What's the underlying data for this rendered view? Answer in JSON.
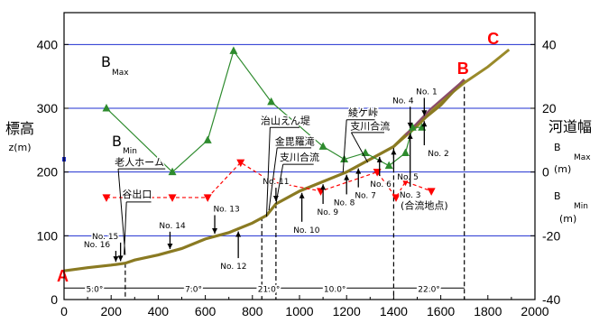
{
  "chart_data": {
    "type": "line",
    "x_ticks": [
      "0",
      "200",
      "400",
      "600",
      "800",
      "1000",
      "1200",
      "1400",
      "1600",
      "1800",
      "2000"
    ],
    "y_left_ticks": [
      "0",
      "100",
      "200",
      "300",
      "400"
    ],
    "y_right_ticks": [
      "-40",
      "-20",
      "0",
      "20",
      "40"
    ],
    "xlim": [
      0,
      2000
    ],
    "ylim_left": [
      0,
      450
    ],
    "ylim_right": [
      -40,
      50
    ],
    "left_axis_label": [
      "標高",
      "z(m)"
    ],
    "right_axis_label": {
      "title": "河道幅",
      "bmax": "B",
      "bmax_sub": "Max",
      "bmax_unit": "(m)",
      "bmin": "B",
      "bmin_sub": "Min",
      "bmin_unit": "(m)"
    },
    "series": [
      {
        "label": "B",
        "label_sub": "Max",
        "color": "#2e8b2e",
        "points": [
          [
            180,
            20
          ],
          [
            460,
            0
          ],
          [
            610,
            10
          ],
          [
            720,
            38
          ],
          [
            880,
            22
          ],
          [
            1100,
            8
          ],
          [
            1190,
            4
          ],
          [
            1280,
            6
          ],
          [
            1380,
            2
          ],
          [
            1450,
            6
          ],
          [
            1480,
            14
          ],
          [
            1520,
            14
          ]
        ]
      },
      {
        "label": "B",
        "label_sub": "Min",
        "color": "#ff0000",
        "points": [
          [
            180,
            -8
          ],
          [
            460,
            -8
          ],
          [
            610,
            -8
          ],
          [
            750,
            3
          ],
          [
            880,
            -3
          ],
          [
            1090,
            -6
          ],
          [
            1330,
            0
          ],
          [
            1410,
            -8
          ],
          [
            1450,
            -3
          ],
          [
            1560,
            -6
          ]
        ]
      }
    ],
    "profile_AB": [
      [
        0,
        45
      ],
      [
        100,
        50
      ],
      [
        200,
        54
      ],
      [
        260,
        57
      ],
      [
        300,
        62
      ],
      [
        400,
        70
      ],
      [
        500,
        80
      ],
      [
        600,
        95
      ],
      [
        700,
        105
      ],
      [
        800,
        120
      ],
      [
        860,
        132
      ],
      [
        900,
        150
      ],
      [
        1000,
        170
      ],
      [
        1100,
        185
      ],
      [
        1200,
        200
      ],
      [
        1300,
        220
      ],
      [
        1400,
        240
      ],
      [
        1450,
        258
      ],
      [
        1500,
        275
      ],
      [
        1600,
        305
      ],
      [
        1700,
        345
      ]
    ],
    "profile_C": [
      [
        1400,
        240
      ],
      [
        1500,
        272
      ],
      [
        1600,
        310
      ],
      [
        1700,
        340
      ],
      [
        1800,
        365
      ],
      [
        1890,
        392
      ]
    ],
    "section_slopes": [
      {
        "label": "5.0°",
        "x_from": 0,
        "x_to": 260
      },
      {
        "label": "7.0°",
        "x_from": 260,
        "x_to": 840
      },
      {
        "label": "21.0°",
        "x_from": 840,
        "x_to": 900
      },
      {
        "label": "10.0°",
        "x_from": 900,
        "x_to": 1400
      },
      {
        "label": "22.0°",
        "x_from": 1400,
        "x_to": 1700
      }
    ],
    "points": [
      {
        "label": "A",
        "x": 0,
        "z": 45
      },
      {
        "label": "B",
        "x": 1700,
        "z": 345
      },
      {
        "label": "C",
        "x": 1890,
        "z": 392
      }
    ],
    "stations": [
      {
        "label": "No. 16",
        "x": 220,
        "label_x": 140,
        "label_z": 82
      },
      {
        "label": "No. 15",
        "x": 240,
        "label_x": 175,
        "label_z": 95
      },
      {
        "label": "No. 14",
        "x": 450,
        "label_x": 460,
        "label_z": 112
      },
      {
        "label": "No. 13",
        "x": 640,
        "label_x": 690,
        "label_z": 138
      },
      {
        "label": "No. 12",
        "x": 740,
        "label_x": 720,
        "label_z": 48
      },
      {
        "label": "No. 11",
        "x": 900,
        "label_x": 900,
        "label_z": 181
      },
      {
        "label": "No. 10",
        "x": 1010,
        "label_x": 1030,
        "label_z": 105
      },
      {
        "label": "No. 9",
        "x": 1100,
        "label_x": 1120,
        "label_z": 133
      },
      {
        "label": "No. 8",
        "x": 1200,
        "label_x": 1190,
        "label_z": 148
      },
      {
        "label": "No. 7",
        "x": 1250,
        "label_x": 1280,
        "label_z": 159
      },
      {
        "label": "No. 6",
        "x": 1340,
        "label_x": 1345,
        "label_z": 177
      },
      {
        "label": "No. 5",
        "x": 1400,
        "label_x": 1460,
        "label_z": 188
      },
      {
        "label": "No. 4",
        "x": 1470,
        "label_x": 1440,
        "label_z": 308
      },
      {
        "label": "No. 3",
        "x": 1470,
        "label_x": 1470,
        "label_z": 160
      },
      {
        "label": "No. 2",
        "x": 1530,
        "label_x": 1590,
        "label_z": 225
      },
      {
        "label": "No. 1",
        "x": 1530,
        "label_x": 1540,
        "label_z": 322
      }
    ],
    "annotations": [
      {
        "text": "老人ホーム",
        "x": 320,
        "z": 210
      },
      {
        "text": "谷出口",
        "x": 310,
        "z": 160
      },
      {
        "text": "治山えん堤",
        "x": 940,
        "z": 275
      },
      {
        "text": "金毘羅滝",
        "x": 980,
        "z": 243
      },
      {
        "text": "支川合流",
        "x": 1000,
        "z": 218
      },
      {
        "text": "綾ケ峠",
        "x": 1270,
        "z": 288
      },
      {
        "text": "支川合流",
        "x": 1300,
        "z": 267
      },
      {
        "text": "(合流地点)",
        "x": 1530,
        "z": 142
      }
    ]
  }
}
